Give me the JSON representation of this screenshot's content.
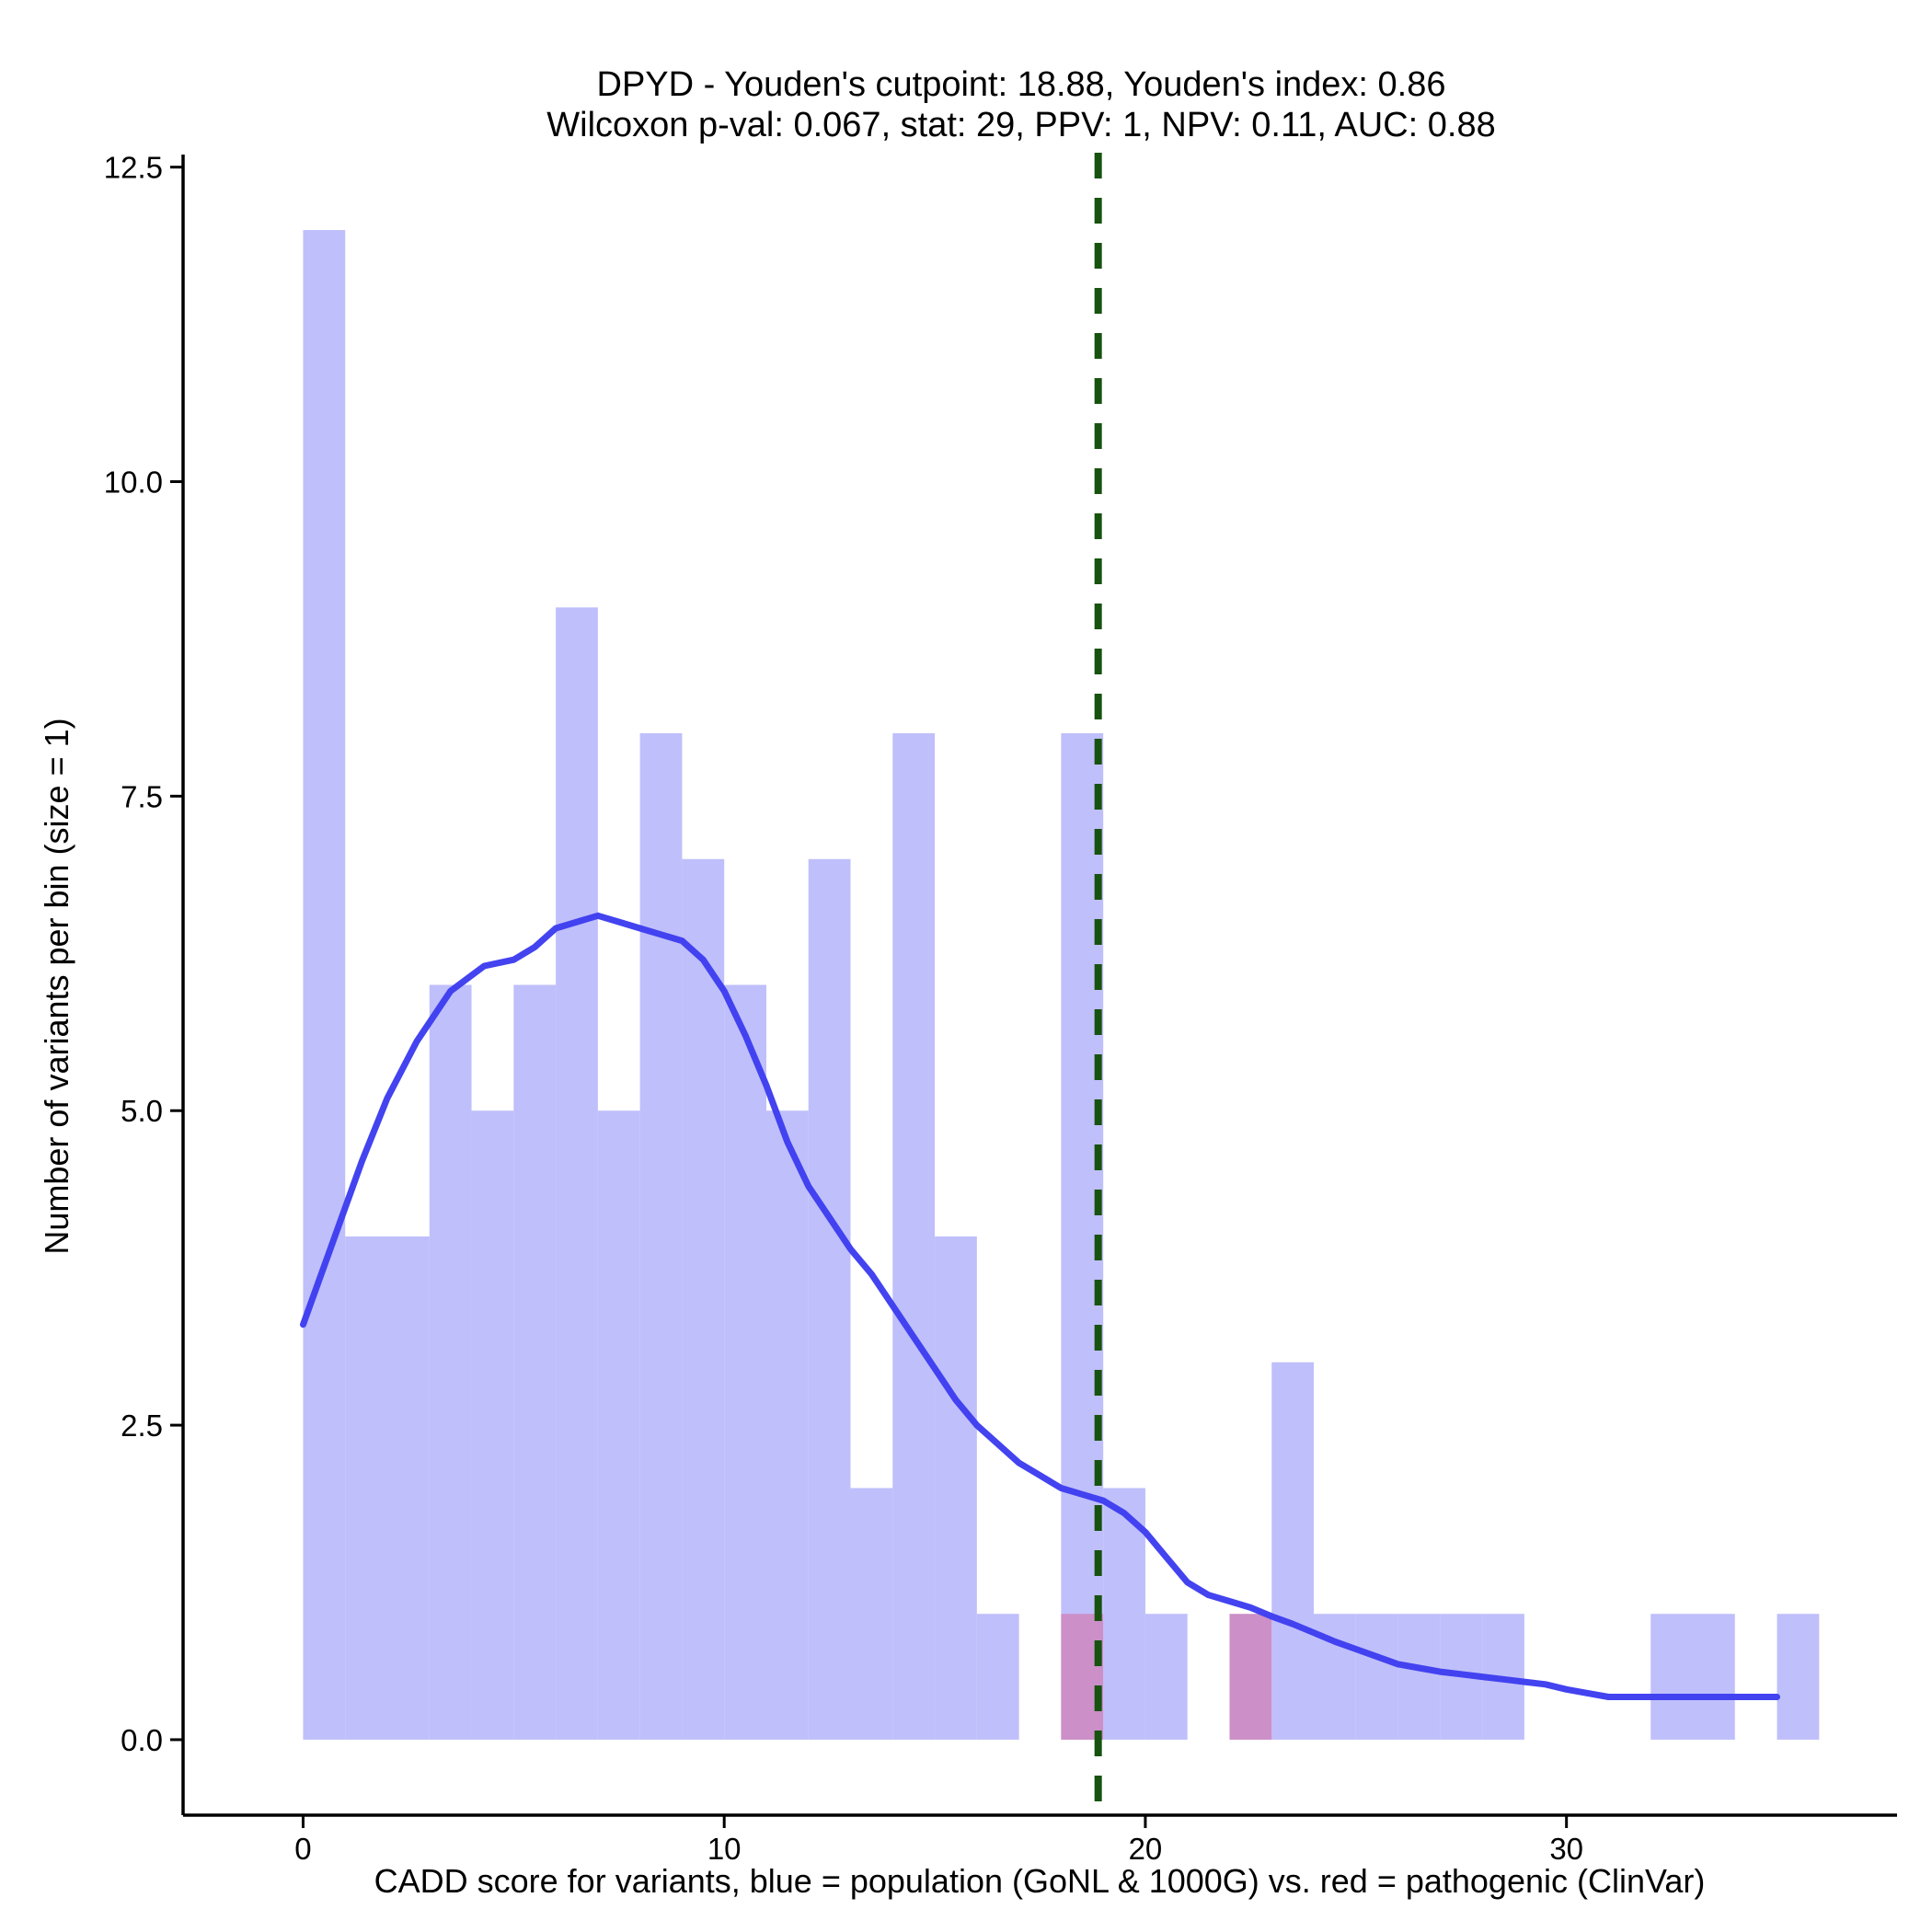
{
  "chart_data": {
    "type": "bar",
    "title": "DPYD - Youden's cutpoint: 18.88, Youden's index: 0.86",
    "subtitle": "Wilcoxon p-val: 0.067, stat: 29, PPV: 1, NPV: 0.11, AUC: 0.88",
    "xlabel": "CADD score for variants, blue = population (GoNL & 1000G) vs. red = pathogenic (ClinVar)",
    "ylabel": "Number of variants per bin (size = 1)",
    "xlim": [
      -2.85,
      37.85
    ],
    "ylim": [
      -0.6,
      12.6
    ],
    "x_ticks": [
      0,
      10,
      20,
      30
    ],
    "x_tick_labels": [
      "0",
      "10",
      "20",
      "30"
    ],
    "y_ticks": [
      0,
      2.5,
      5,
      7.5,
      10,
      12.5
    ],
    "y_tick_labels": [
      "0.0",
      "2.5",
      "5.0",
      "7.5",
      "10.0",
      "12.5"
    ],
    "bin_width": 1,
    "cutpoint": 18.88,
    "series": [
      {
        "name": "population (GoNL & 1000G)",
        "color": "#bfbffb",
        "bins": [
          [
            0,
            12
          ],
          [
            1,
            4
          ],
          [
            2,
            4
          ],
          [
            3,
            6
          ],
          [
            4,
            5
          ],
          [
            5,
            6
          ],
          [
            6,
            9
          ],
          [
            7,
            5
          ],
          [
            8,
            8
          ],
          [
            9,
            7
          ],
          [
            10,
            6
          ],
          [
            11,
            5
          ],
          [
            12,
            7
          ],
          [
            13,
            2
          ],
          [
            14,
            8
          ],
          [
            15,
            4
          ],
          [
            16,
            1
          ],
          [
            18,
            8
          ],
          [
            19,
            2
          ],
          [
            20,
            1
          ],
          [
            23,
            3
          ],
          [
            24,
            1
          ],
          [
            25,
            1
          ],
          [
            26,
            1
          ],
          [
            27,
            1
          ],
          [
            28,
            1
          ],
          [
            32,
            1
          ],
          [
            33,
            1
          ],
          [
            35,
            1
          ]
        ]
      },
      {
        "name": "pathogenic (ClinVar)",
        "color": "#cc8fc7",
        "bins": [
          [
            18,
            1
          ],
          [
            22,
            1
          ]
        ]
      }
    ],
    "density": {
      "name": "population density",
      "color": "#3f3ff0",
      "x": [
        0,
        0.7,
        1.4,
        2,
        2.7,
        3.5,
        4.3,
        5,
        5.5,
        6,
        6.5,
        7,
        7.5,
        8,
        8.5,
        9,
        9.5,
        10,
        10.5,
        11,
        11.5,
        12,
        12.5,
        13,
        13.5,
        14,
        14.5,
        15,
        15.5,
        16,
        16.5,
        17,
        17.5,
        18,
        18.5,
        19,
        19.5,
        20,
        20.5,
        21,
        21.5,
        22,
        22.5,
        23,
        23.5,
        24,
        24.5,
        25,
        25.5,
        26,
        26.5,
        27,
        27.5,
        28,
        28.5,
        29,
        29.5,
        30,
        30.5,
        31,
        31.5,
        32,
        32.5,
        33,
        33.5,
        34,
        34.5,
        35
      ],
      "y": [
        3.3,
        3.95,
        4.6,
        5.1,
        5.55,
        5.95,
        6.15,
        6.2,
        6.3,
        6.45,
        6.5,
        6.55,
        6.5,
        6.45,
        6.4,
        6.35,
        6.2,
        5.95,
        5.6,
        5.2,
        4.75,
        4.4,
        4.15,
        3.9,
        3.7,
        3.45,
        3.2,
        2.95,
        2.7,
        2.5,
        2.35,
        2.2,
        2.1,
        2.0,
        1.95,
        1.9,
        1.8,
        1.65,
        1.45,
        1.25,
        1.15,
        1.1,
        1.05,
        0.98,
        0.92,
        0.85,
        0.78,
        0.72,
        0.66,
        0.6,
        0.57,
        0.54,
        0.52,
        0.5,
        0.48,
        0.46,
        0.44,
        0.4,
        0.37,
        0.34,
        0.34,
        0.34,
        0.34,
        0.34,
        0.34,
        0.34,
        0.34,
        0.34
      ]
    }
  }
}
